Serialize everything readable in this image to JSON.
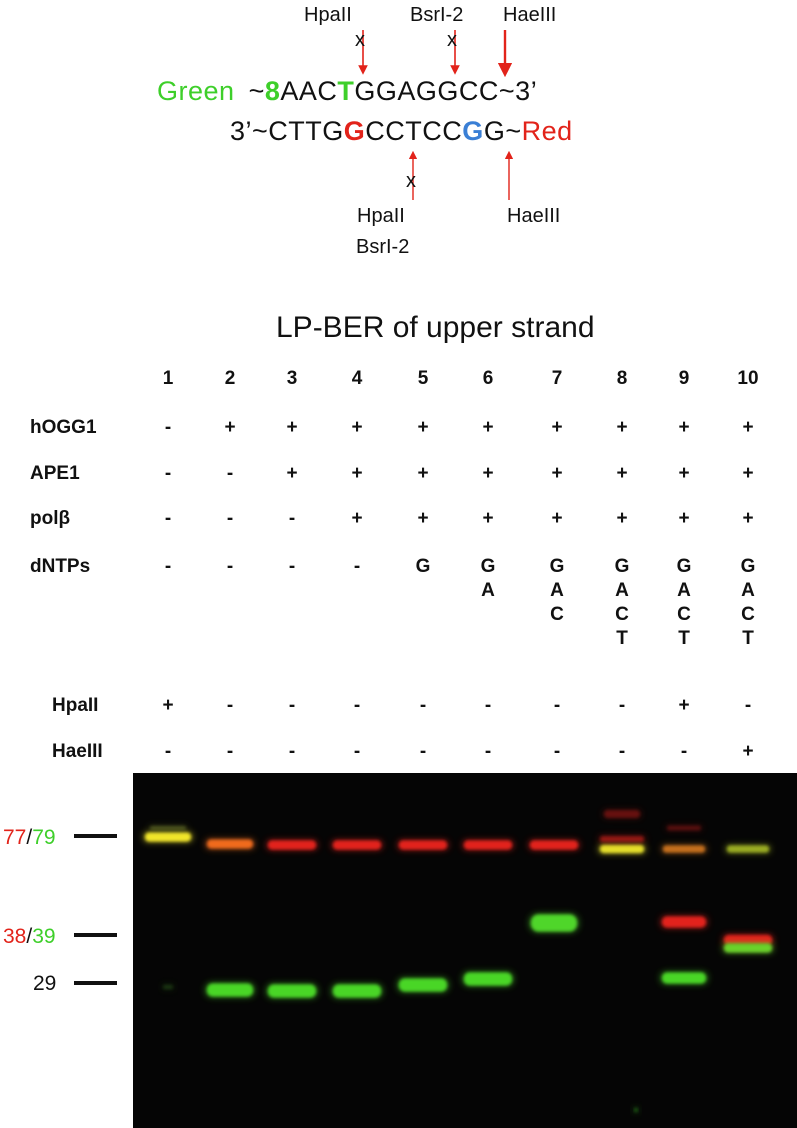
{
  "colors": {
    "green": "#3ecf2a",
    "red": "#e2231a",
    "blue": "#3a7fd5",
    "black": "#111111",
    "gel_bg": "#050505"
  },
  "sequence": {
    "top_label": "Green",
    "top_prefix": "~",
    "top_oxo": "8",
    "top_part1": "AAC",
    "top_t": "T",
    "top_part2": "GGAGGCC~3’",
    "bottom_prefix": "3’~CTTG",
    "bottom_g_red": "G",
    "bottom_mid": "CCTCC",
    "bottom_g_blue": "G",
    "bottom_suffix": "G~",
    "bottom_label": "Red"
  },
  "enzymes": {
    "top": [
      "HpaII",
      "BsrI-2",
      "HaeIII"
    ],
    "bottom_left_1": "HpaII",
    "bottom_left_2": "BsrI-2",
    "bottom_right": "HaeIII",
    "cut_mark": "x"
  },
  "gel_title": "LP-BER of upper strand",
  "lanes": [
    "1",
    "2",
    "3",
    "4",
    "5",
    "6",
    "7",
    "8",
    "9",
    "10"
  ],
  "table_rows": [
    {
      "label": "hOGG1",
      "values": [
        [
          "-"
        ],
        [
          "+"
        ],
        [
          "+"
        ],
        [
          "+"
        ],
        [
          "+"
        ],
        [
          "+"
        ],
        [
          "+"
        ],
        [
          "+"
        ],
        [
          "+"
        ],
        [
          "+"
        ]
      ]
    },
    {
      "label": "APE1",
      "values": [
        [
          "-"
        ],
        [
          "-"
        ],
        [
          "+"
        ],
        [
          "+"
        ],
        [
          "+"
        ],
        [
          "+"
        ],
        [
          "+"
        ],
        [
          "+"
        ],
        [
          "+"
        ],
        [
          "+"
        ]
      ]
    },
    {
      "label": "polβ",
      "values": [
        [
          "-"
        ],
        [
          "-"
        ],
        [
          "-"
        ],
        [
          "+"
        ],
        [
          "+"
        ],
        [
          "+"
        ],
        [
          "+"
        ],
        [
          "+"
        ],
        [
          "+"
        ],
        [
          "+"
        ]
      ]
    },
    {
      "label": "dNTPs",
      "values": [
        [
          "-"
        ],
        [
          "-"
        ],
        [
          "-"
        ],
        [
          "-"
        ],
        [
          "G"
        ],
        [
          "G",
          "A"
        ],
        [
          "G",
          "A",
          "C"
        ],
        [
          "G",
          "A",
          "C",
          "T"
        ],
        [
          "G",
          "A",
          "C",
          "T"
        ],
        [
          "G",
          "A",
          "C",
          "T"
        ]
      ]
    },
    {
      "label": "HpaII",
      "values": [
        [
          "+"
        ],
        [
          "-"
        ],
        [
          "-"
        ],
        [
          "-"
        ],
        [
          "-"
        ],
        [
          "-"
        ],
        [
          "-"
        ],
        [
          "-"
        ],
        [
          "+"
        ],
        [
          "-"
        ]
      ]
    },
    {
      "label": "HaeIII",
      "values": [
        [
          "-"
        ],
        [
          "-"
        ],
        [
          "-"
        ],
        [
          "-"
        ],
        [
          "-"
        ],
        [
          "-"
        ],
        [
          "-"
        ],
        [
          "-"
        ],
        [
          "-"
        ],
        [
          "+"
        ]
      ]
    }
  ],
  "markers": [
    {
      "red": "77",
      "sep": "/",
      "green": "79"
    },
    {
      "red": "38",
      "sep": "/",
      "green": "39"
    },
    {
      "red": "",
      "sep": "",
      "green": "",
      "black": "29"
    }
  ]
}
